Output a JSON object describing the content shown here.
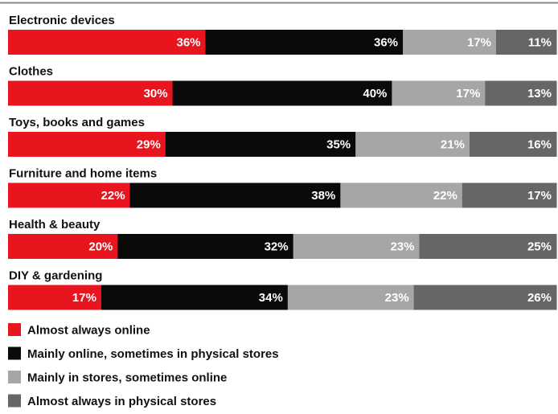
{
  "chart_data": {
    "type": "bar",
    "orientation": "horizontal",
    "stacked": true,
    "categories": [
      "Electronic devices",
      "Clothes",
      "Toys, books and games",
      "Furniture and home items",
      "Health & beauty",
      "DIY & gardening"
    ],
    "series": [
      {
        "name": "Almost always online",
        "color": "#e8141e",
        "values": [
          36,
          30,
          29,
          22,
          20,
          17
        ]
      },
      {
        "name": "Mainly online, sometimes in physical stores",
        "color": "#0a0a0a",
        "values": [
          36,
          40,
          35,
          38,
          32,
          34
        ]
      },
      {
        "name": "Mainly in stores, sometimes online",
        "color": "#a6a6a6",
        "values": [
          17,
          17,
          21,
          22,
          23,
          23
        ]
      },
      {
        "name": "Almost always in physical stores",
        "color": "#666666",
        "values": [
          11,
          13,
          16,
          17,
          25,
          26
        ]
      }
    ],
    "value_suffix": "%",
    "legend_position": "bottom",
    "grid": false
  }
}
